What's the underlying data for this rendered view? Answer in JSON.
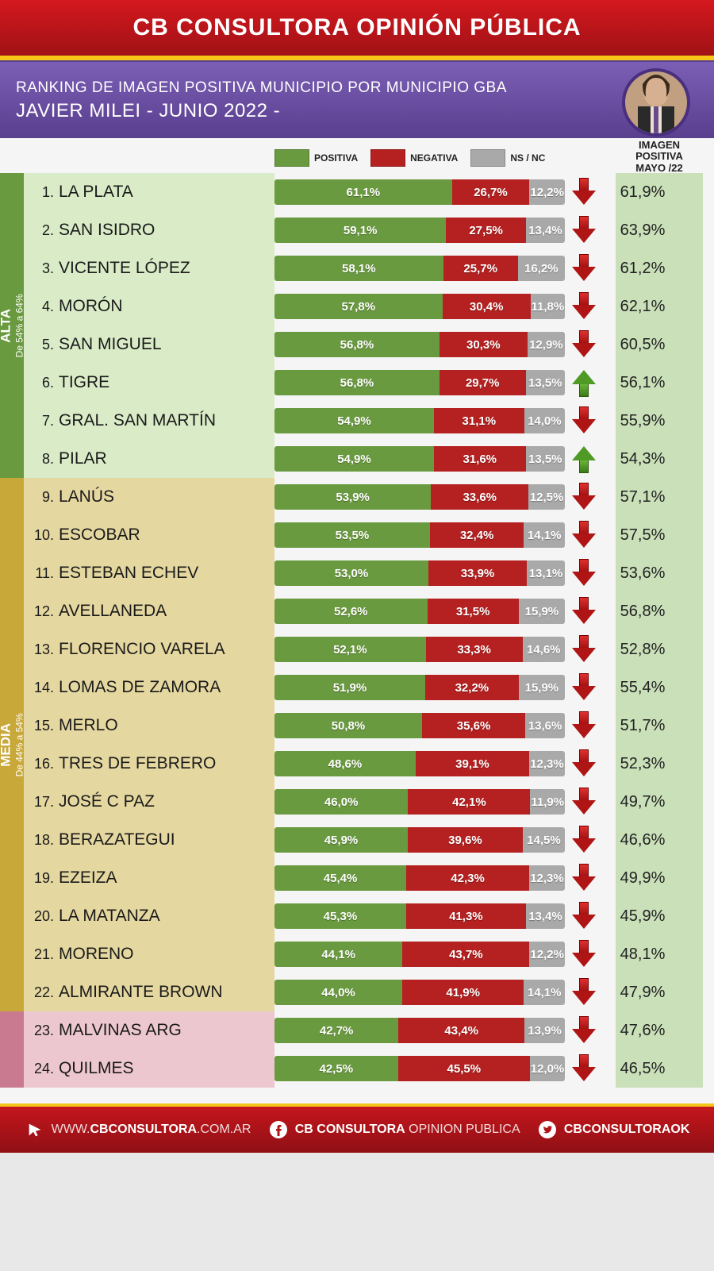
{
  "header": {
    "title": "CB CONSULTORA OPINIÓN PÚBLICA"
  },
  "sub": {
    "line1": "RANKING DE IMAGEN POSITIVA MUNICIPIO POR MUNICIPIO GBA",
    "line2": "JAVIER MILEI - JUNIO 2022 -"
  },
  "legend": {
    "positiva": "POSITIVA",
    "negativa": "NEGATIVA",
    "nsnc": "NS / NC",
    "mayo_header": "IMAGEN POSITIVA MAYO /22"
  },
  "colors": {
    "positiva": "#6a9a3f",
    "negativa": "#b52020",
    "nsnc": "#a9a9a9",
    "row_alta": "#d9ecc7",
    "row_media": "#e5d7a0",
    "row_baja": "#ecc7cf",
    "tab_alta": "#6a9a3f",
    "tab_media": "#c9a83a",
    "tab_baja": "#c97a90",
    "mayo_bg": "#c9e0b8"
  },
  "groups": [
    {
      "id": "alta",
      "label_big": "ALTA",
      "label_small": "De 54% a 64%",
      "color": "#6a9a3f",
      "bg": "#d9ecc7",
      "start": 0,
      "end": 8
    },
    {
      "id": "media",
      "label_big": "MEDIA",
      "label_small": "De 44% a 54%",
      "color": "#c9a83a",
      "bg": "#e5d7a0",
      "start": 8,
      "end": 22
    },
    {
      "id": "baja",
      "label_big": "",
      "label_small": "",
      "color": "#c97a90",
      "bg": "#ecc7cf",
      "start": 22,
      "end": 24
    }
  ],
  "rows": [
    {
      "rank": "1.",
      "name": "LA PLATA",
      "pos": "61,1%",
      "neg": "26,7%",
      "ns": "12,2%",
      "pos_v": 61.1,
      "neg_v": 26.7,
      "ns_v": 12.2,
      "trend": "down",
      "mayo": "61,9%"
    },
    {
      "rank": "2.",
      "name": "SAN ISIDRO",
      "pos": "59,1%",
      "neg": "27,5%",
      "ns": "13,4%",
      "pos_v": 59.1,
      "neg_v": 27.5,
      "ns_v": 13.4,
      "trend": "down",
      "mayo": "63,9%"
    },
    {
      "rank": "3.",
      "name": "VICENTE LÓPEZ",
      "pos": "58,1%",
      "neg": "25,7%",
      "ns": "16,2%",
      "pos_v": 58.1,
      "neg_v": 25.7,
      "ns_v": 16.2,
      "trend": "down",
      "mayo": "61,2%"
    },
    {
      "rank": "4.",
      "name": "MORÓN",
      "pos": "57,8%",
      "neg": "30,4%",
      "ns": "11,8%",
      "pos_v": 57.8,
      "neg_v": 30.4,
      "ns_v": 11.8,
      "trend": "down",
      "mayo": "62,1%"
    },
    {
      "rank": "5.",
      "name": "SAN MIGUEL",
      "pos": "56,8%",
      "neg": "30,3%",
      "ns": "12,9%",
      "pos_v": 56.8,
      "neg_v": 30.3,
      "ns_v": 12.9,
      "trend": "down",
      "mayo": "60,5%"
    },
    {
      "rank": "6.",
      "name": "TIGRE",
      "pos": "56,8%",
      "neg": "29,7%",
      "ns": "13,5%",
      "pos_v": 56.8,
      "neg_v": 29.7,
      "ns_v": 13.5,
      "trend": "up",
      "mayo": "56,1%"
    },
    {
      "rank": "7.",
      "name": "GRAL. SAN MARTÍN",
      "pos": "54,9%",
      "neg": "31,1%",
      "ns": "14,0%",
      "pos_v": 54.9,
      "neg_v": 31.1,
      "ns_v": 14.0,
      "trend": "down",
      "mayo": "55,9%"
    },
    {
      "rank": "8.",
      "name": "PILAR",
      "pos": "54,9%",
      "neg": "31,6%",
      "ns": "13,5%",
      "pos_v": 54.9,
      "neg_v": 31.6,
      "ns_v": 13.5,
      "trend": "up",
      "mayo": "54,3%"
    },
    {
      "rank": "9.",
      "name": "LANÚS",
      "pos": "53,9%",
      "neg": "33,6%",
      "ns": "12,5%",
      "pos_v": 53.9,
      "neg_v": 33.6,
      "ns_v": 12.5,
      "trend": "down",
      "mayo": "57,1%"
    },
    {
      "rank": "10.",
      "name": "ESCOBAR",
      "pos": "53,5%",
      "neg": "32,4%",
      "ns": "14,1%",
      "pos_v": 53.5,
      "neg_v": 32.4,
      "ns_v": 14.1,
      "trend": "down",
      "mayo": "57,5%"
    },
    {
      "rank": "11.",
      "name": "ESTEBAN ECHEV",
      "pos": "53,0%",
      "neg": "33,9%",
      "ns": "13,1%",
      "pos_v": 53.0,
      "neg_v": 33.9,
      "ns_v": 13.1,
      "trend": "down",
      "mayo": "53,6%"
    },
    {
      "rank": "12.",
      "name": "AVELLANEDA",
      "pos": "52,6%",
      "neg": "31,5%",
      "ns": "15,9%",
      "pos_v": 52.6,
      "neg_v": 31.5,
      "ns_v": 15.9,
      "trend": "down",
      "mayo": "56,8%"
    },
    {
      "rank": "13.",
      "name": "FLORENCIO VARELA",
      "pos": "52,1%",
      "neg": "33,3%",
      "ns": "14,6%",
      "pos_v": 52.1,
      "neg_v": 33.3,
      "ns_v": 14.6,
      "trend": "down",
      "mayo": "52,8%"
    },
    {
      "rank": "14.",
      "name": "LOMAS DE ZAMORA",
      "pos": "51,9%",
      "neg": "32,2%",
      "ns": "15,9%",
      "pos_v": 51.9,
      "neg_v": 32.2,
      "ns_v": 15.9,
      "trend": "down",
      "mayo": "55,4%"
    },
    {
      "rank": "15.",
      "name": "MERLO",
      "pos": "50,8%",
      "neg": "35,6%",
      "ns": "13,6%",
      "pos_v": 50.8,
      "neg_v": 35.6,
      "ns_v": 13.6,
      "trend": "down",
      "mayo": "51,7%"
    },
    {
      "rank": "16.",
      "name": "TRES DE FEBRERO",
      "pos": "48,6%",
      "neg": "39,1%",
      "ns": "12,3%",
      "pos_v": 48.6,
      "neg_v": 39.1,
      "ns_v": 12.3,
      "trend": "down",
      "mayo": "52,3%"
    },
    {
      "rank": "17.",
      "name": "JOSÉ C PAZ",
      "pos": "46,0%",
      "neg": "42,1%",
      "ns": "11,9%",
      "pos_v": 46.0,
      "neg_v": 42.1,
      "ns_v": 11.9,
      "trend": "down",
      "mayo": "49,7%"
    },
    {
      "rank": "18.",
      "name": "BERAZATEGUI",
      "pos": "45,9%",
      "neg": "39,6%",
      "ns": "14,5%",
      "pos_v": 45.9,
      "neg_v": 39.6,
      "ns_v": 14.5,
      "trend": "down",
      "mayo": "46,6%"
    },
    {
      "rank": "19.",
      "name": "EZEIZA",
      "pos": "45,4%",
      "neg": "42,3%",
      "ns": "12,3%",
      "pos_v": 45.4,
      "neg_v": 42.3,
      "ns_v": 12.3,
      "trend": "down",
      "mayo": "49,9%"
    },
    {
      "rank": "20.",
      "name": "LA MATANZA",
      "pos": "45,3%",
      "neg": "41,3%",
      "ns": "13,4%",
      "pos_v": 45.3,
      "neg_v": 41.3,
      "ns_v": 13.4,
      "trend": "down",
      "mayo": "45,9%"
    },
    {
      "rank": "21.",
      "name": "MORENO",
      "pos": "44,1%",
      "neg": "43,7%",
      "ns": "12,2%",
      "pos_v": 44.1,
      "neg_v": 43.7,
      "ns_v": 12.2,
      "trend": "down",
      "mayo": "48,1%"
    },
    {
      "rank": "22.",
      "name": "ALMIRANTE BROWN",
      "pos": "44,0%",
      "neg": "41,9%",
      "ns": "14,1%",
      "pos_v": 44.0,
      "neg_v": 41.9,
      "ns_v": 14.1,
      "trend": "down",
      "mayo": "47,9%"
    },
    {
      "rank": "23.",
      "name": "MALVINAS ARG",
      "pos": "42,7%",
      "neg": "43,4%",
      "ns": "13,9%",
      "pos_v": 42.7,
      "neg_v": 43.4,
      "ns_v": 13.9,
      "trend": "down",
      "mayo": "47,6%"
    },
    {
      "rank": "24.",
      "name": "QUILMES",
      "pos": "42,5%",
      "neg": "45,5%",
      "ns": "12,0%",
      "pos_v": 42.5,
      "neg_v": 45.5,
      "ns_v": 12.0,
      "trend": "down",
      "mayo": "46,5%"
    }
  ],
  "footer": {
    "web_pre": "WWW.",
    "web_bold": "CBCONSULTORA",
    "web_post": ".COM.AR",
    "fb_bold": "CB CONSULTORA",
    "fb_thin": " OPINION PUBLICA",
    "tw": "CBCONSULTORAOK"
  }
}
